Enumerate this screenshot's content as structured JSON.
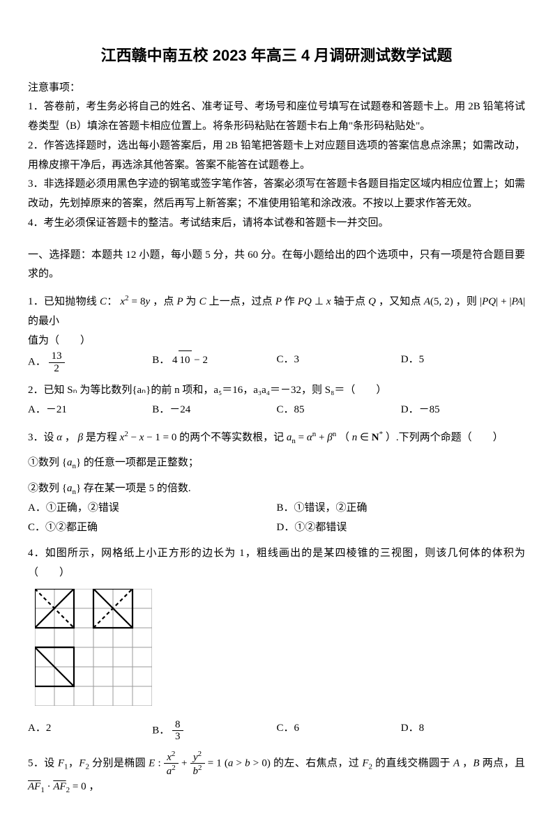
{
  "title": "江西赣中南五校 2023 年高三 4 月调研测试数学试题",
  "notice_head": "注意事项：",
  "notice": [
    "1．答卷前，考生务必将自己的姓名、准考证号、考场号和座位号填写在试题卷和答题卡上。用 2B 铅笔将试卷类型（B）填涂在答题卡相应位置上。将条形码粘贴在答题卡右上角\"条形码粘贴处\"。",
    "2．作答选择题时，选出每小题答案后，用 2B 铅笔把答题卡上对应题目选项的答案信息点涂黑；如需改动，用橡皮擦干净后，再选涂其他答案。答案不能答在试题卷上。",
    "3．非选择题必须用黑色字迹的钢笔或签字笔作答，答案必须写在答题卡各题目指定区域内相应位置上；如需改动，先划掉原来的答案，然后再写上新答案；不准使用铅笔和涂改液。不按以上要求作答无效。",
    "4．考生必须保证答题卡的整洁。考试结束后，请将本试卷和答题卡一并交回。"
  ],
  "section1": "一、选择题：本题共 12 小题，每小题 5 分，共 60 分。在每小题给出的四个选项中，只有一项是符合题目要求的。",
  "q1": {
    "prefix": "1．已知抛物线",
    "mid1": "，点",
    "mid2": "为",
    "mid3": "上一点，过点",
    "mid4": "作",
    "mid5": "轴于点",
    "mid6": "，又知点",
    "mid7": "，则",
    "tail": "的最小",
    "line2": "值为（　　）",
    "A": "A．",
    "B": "B．",
    "C": "C．3",
    "D": "D．5"
  },
  "q2": {
    "text": "2．已知 Sₙ 为等比数列{aₙ}的前 n 项和，a₅＝16，a₃a₄＝－32，则 S₈＝（　　）",
    "A": "A．－21",
    "B": "B．－24",
    "C": "C．85",
    "D": "D．－85"
  },
  "q3": {
    "prefix": "3．设",
    "mid1": "是方程",
    "mid2": "的两个不等实数根，记",
    "mid3": "（",
    "mid4": "）.下列两个命题（　　）",
    "s1": "①数列",
    "s1b": "的任意一项都是正整数；",
    "s2": "②数列",
    "s2b": "存在某一项是 5 的倍数.",
    "A": "A．①正确，②错误",
    "B": "B．①错误，②正确",
    "C": "C．①②都正确",
    "D": "D．①②都错误"
  },
  "q4": {
    "text": "4．如图所示，网格纸上小正方形的边长为 1，粗线画出的是某四棱锥的三视图，则该几何体的体积为（　　）",
    "A": "A．2",
    "B": "B．",
    "C": "C．6",
    "D": "D．8"
  },
  "q5": {
    "prefix": "5．设",
    "mid1": "分别是椭圆",
    "mid2": "的左、右焦点，过",
    "mid3": "的直线交椭圆于",
    "mid4": "两点，且",
    "tail": "，"
  },
  "threeview": {
    "cell": 28,
    "cols": 6,
    "rows": 6,
    "grid_color": "#9a9a9a",
    "thick_color": "#000",
    "grid_w": 1,
    "thick_w": 2.2
  }
}
